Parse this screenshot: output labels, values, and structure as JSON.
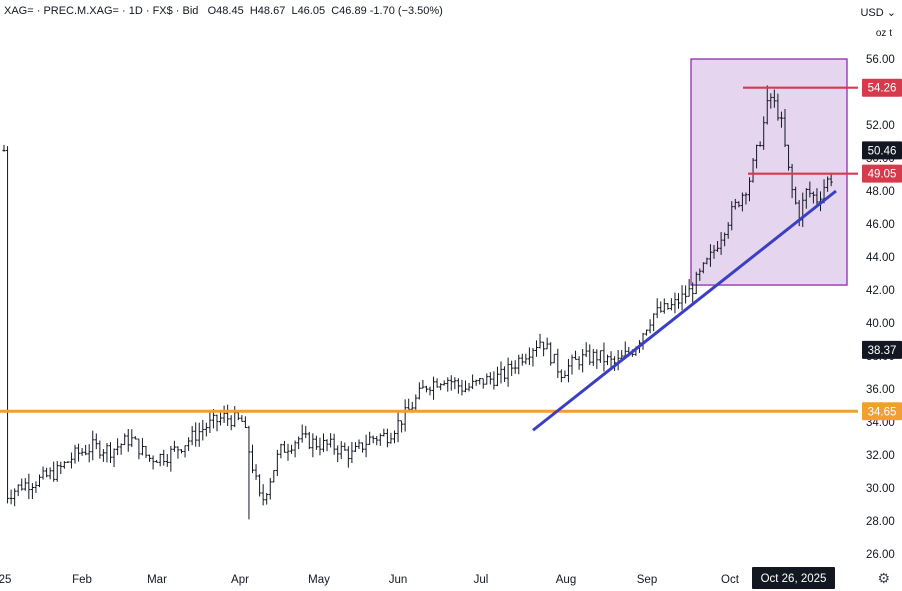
{
  "header": {
    "symbol": "XAG=",
    "source": "PREC.M.XAG=",
    "interval": "1D",
    "exchange": "FX$",
    "price_type": "Bid",
    "open_label": "O",
    "open": "48.45",
    "high_label": "H",
    "high": "48.67",
    "low_label": "L",
    "low": "46.05",
    "close_label": "C",
    "close": "46.89",
    "change": "-1.70",
    "change_pct": "(−3.50%)"
  },
  "currency": "USD",
  "unit": "oz t",
  "colors": {
    "bars": "#131722",
    "support_line": "#f0a030",
    "resistance": "#d63a4d",
    "trendline": "#3b3fc4",
    "box_fill": "#e6d5ee",
    "box_border": "#8e2ea8",
    "last_price_tag": "#131722",
    "gear": "#434651"
  },
  "icons": {
    "settings": "gear-icon"
  },
  "chart_data": {
    "type": "ohlc",
    "ylim": [
      25,
      57
    ],
    "y_ticks": [
      "26.00",
      "28.00",
      "30.00",
      "32.00",
      "34.00",
      "36.00",
      "38.00",
      "40.00",
      "42.00",
      "44.00",
      "46.00",
      "48.00",
      "50.00",
      "52.00",
      "54.00",
      "56.00"
    ],
    "x_ticks": [
      "25",
      "Feb",
      "Mar",
      "Apr",
      "May",
      "Jun",
      "Jul",
      "Aug",
      "Sep",
      "Oct"
    ],
    "crosshair_date": "Oct 26, 2025",
    "grid": false,
    "price_labels": [
      {
        "name": "last-price",
        "value": 50.46,
        "text": "50.46",
        "style": "last"
      },
      {
        "name": "resistance-high",
        "value": 54.26,
        "text": "54.26",
        "style": "resistance"
      },
      {
        "name": "resistance-low",
        "value": 49.05,
        "text": "49.05",
        "style": "resistance"
      },
      {
        "name": "crosshair-price",
        "value": 38.37,
        "text": "38.37",
        "style": "crosshair"
      },
      {
        "name": "support",
        "value": 34.65,
        "text": "34.65",
        "style": "support"
      }
    ],
    "support_level": 34.65,
    "resistance_segments": [
      {
        "value": 54.26,
        "from": "Oct 4",
        "to": "Dec 31"
      },
      {
        "value": 49.05,
        "from": "Oct 6",
        "to": "Dec 31"
      }
    ],
    "trendline": {
      "from": {
        "date": "Jul 18",
        "value": 33.5
      },
      "to": {
        "date": "Oct 24",
        "value": 48.0
      }
    },
    "highlight_box": {
      "from": "Sep 22",
      "to": "Oct 31",
      "low": 42.3,
      "high": 56.0
    },
    "series_close": [
      [
        "Jan 1",
        29.5
      ],
      [
        "Jan 8",
        30.2
      ],
      [
        "Jan 15",
        30.5
      ],
      [
        "Jan 22",
        31.0
      ],
      [
        "Jan 29",
        32.0
      ],
      [
        "Feb 5",
        32.5
      ],
      [
        "Feb 12",
        32.3
      ],
      [
        "Feb 19",
        33.0
      ],
      [
        "Feb 26",
        31.8
      ],
      [
        "Mar 5",
        32.0
      ],
      [
        "Mar 12",
        32.8
      ],
      [
        "Mar 19",
        33.7
      ],
      [
        "Mar 26",
        34.3
      ],
      [
        "Apr 2",
        34.0
      ],
      [
        "Apr 9",
        29.0
      ],
      [
        "Apr 16",
        32.2
      ],
      [
        "Apr 23",
        33.0
      ],
      [
        "Apr 30",
        32.7
      ],
      [
        "May 7",
        32.5
      ],
      [
        "May 14",
        32.0
      ],
      [
        "May 21",
        33.0
      ],
      [
        "May 28",
        33.2
      ],
      [
        "Jun 4",
        34.5
      ],
      [
        "Jun 11",
        36.2
      ],
      [
        "Jun 18",
        36.7
      ],
      [
        "Jun 25",
        36.0
      ],
      [
        "Jul 2",
        36.5
      ],
      [
        "Jul 9",
        36.8
      ],
      [
        "Jul 16",
        38.0
      ],
      [
        "Jul 23",
        39.0
      ],
      [
        "Jul 30",
        37.0
      ],
      [
        "Aug 6",
        37.8
      ],
      [
        "Aug 13",
        38.0
      ],
      [
        "Aug 20",
        37.5
      ],
      [
        "Aug 27",
        38.5
      ],
      [
        "Sep 3",
        40.5
      ],
      [
        "Sep 10",
        41.0
      ],
      [
        "Sep 17",
        42.0
      ],
      [
        "Sep 24",
        44.0
      ],
      [
        "Oct 1",
        46.5
      ],
      [
        "Oct 8",
        48.5
      ],
      [
        "Oct 13",
        51.5
      ],
      [
        "Oct 16",
        53.8
      ],
      [
        "Oct 20",
        52.5
      ],
      [
        "Oct 24",
        48.3
      ],
      [
        "Oct 27",
        46.5
      ],
      [
        "Oct 30",
        48.0
      ],
      [
        "Nov 3",
        47.5
      ],
      [
        "Nov 6",
        48.5
      ],
      [
        "Nov 9",
        49.0
      ],
      [
        "Nov 12",
        50.46
      ]
    ]
  }
}
